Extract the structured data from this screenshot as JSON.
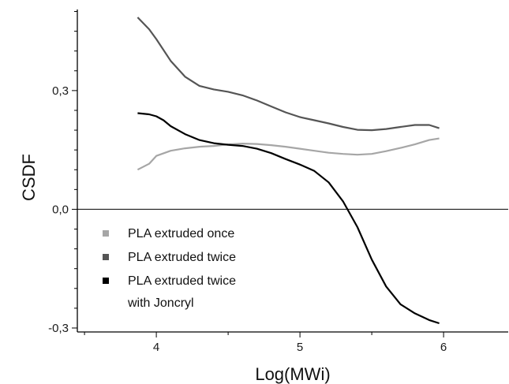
{
  "chart_data": {
    "type": "line",
    "xlabel": "Log(MWi)",
    "ylabel": "CSDF",
    "xlim": [
      3.45,
      6.45
    ],
    "ylim": [
      -0.31,
      0.505
    ],
    "x_ticks": [
      4,
      5,
      6
    ],
    "y_ticks": [
      -0.3,
      0.0,
      0.3
    ],
    "x_tick_labels": [
      "4",
      "5",
      "6"
    ],
    "y_tick_labels": [
      "-0,3",
      "0,0",
      "0,3"
    ],
    "zero_line": true,
    "grid": false,
    "legend_position": "bottom-left",
    "series": [
      {
        "name": "PLA extruded once",
        "color": "#a6a6a6",
        "x": [
          3.87,
          3.95,
          4.0,
          4.1,
          4.2,
          4.3,
          4.4,
          4.5,
          4.6,
          4.7,
          4.8,
          4.9,
          5.0,
          5.1,
          5.2,
          5.3,
          5.4,
          5.5,
          5.6,
          5.7,
          5.8,
          5.9,
          5.97
        ],
        "y": [
          0.1,
          0.115,
          0.135,
          0.148,
          0.154,
          0.158,
          0.16,
          0.164,
          0.166,
          0.165,
          0.162,
          0.158,
          0.153,
          0.148,
          0.143,
          0.14,
          0.138,
          0.14,
          0.147,
          0.155,
          0.164,
          0.175,
          0.179
        ]
      },
      {
        "name": "PLA extruded twice",
        "color": "#555555",
        "x": [
          3.87,
          3.95,
          4.0,
          4.1,
          4.2,
          4.3,
          4.4,
          4.5,
          4.6,
          4.7,
          4.8,
          4.9,
          5.0,
          5.1,
          5.2,
          5.3,
          5.4,
          5.5,
          5.6,
          5.7,
          5.8,
          5.9,
          5.97
        ],
        "y": [
          0.485,
          0.455,
          0.43,
          0.375,
          0.335,
          0.312,
          0.303,
          0.297,
          0.288,
          0.275,
          0.26,
          0.245,
          0.233,
          0.225,
          0.217,
          0.208,
          0.201,
          0.2,
          0.203,
          0.208,
          0.213,
          0.213,
          0.205
        ]
      },
      {
        "name": "PLA extruded twice with Joncryl",
        "color": "#000000",
        "x": [
          3.87,
          3.95,
          4.0,
          4.05,
          4.1,
          4.2,
          4.3,
          4.4,
          4.5,
          4.6,
          4.7,
          4.8,
          4.9,
          5.0,
          5.1,
          5.2,
          5.3,
          5.4,
          5.5,
          5.6,
          5.7,
          5.8,
          5.9,
          5.97
        ],
        "y": [
          0.243,
          0.24,
          0.235,
          0.225,
          0.21,
          0.19,
          0.175,
          0.167,
          0.163,
          0.16,
          0.153,
          0.142,
          0.127,
          0.113,
          0.097,
          0.068,
          0.02,
          -0.045,
          -0.127,
          -0.195,
          -0.24,
          -0.263,
          -0.28,
          -0.288
        ]
      }
    ]
  },
  "legend": {
    "items": [
      {
        "lines": [
          "PLA extruded once"
        ],
        "color": "#a6a6a6"
      },
      {
        "lines": [
          "PLA extruded twice"
        ],
        "color": "#555555"
      },
      {
        "lines": [
          "PLA extruded twice",
          "with Joncryl"
        ],
        "color": "#000000"
      }
    ]
  }
}
